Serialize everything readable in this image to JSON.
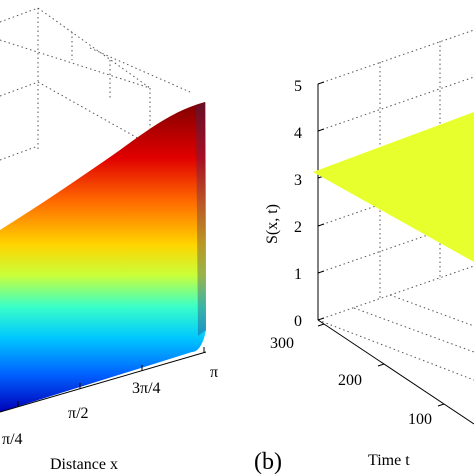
{
  "chart_data": [
    {
      "type": "surface",
      "panel": "left",
      "xlabel": "Distance x",
      "x_ticks": [
        "π/4",
        "π/2",
        "3π/4",
        "π"
      ],
      "colormap": "jet",
      "note_values": "surface rises along x toward π; partial view, z-axis cropped"
    },
    {
      "type": "surface",
      "panel_label": "(b)",
      "ylabel": "S(x, t)",
      "tlabel": "Time t",
      "z_ticks": [
        "0",
        "1",
        "2",
        "3",
        "4",
        "5"
      ],
      "zlim": [
        0,
        5
      ],
      "t_ticks": [
        "300",
        "200",
        "100"
      ],
      "surface_value": 3.2,
      "surface_color": "#e8ff2e"
    }
  ],
  "colors": {
    "jet_top": "#7f0000",
    "jet_high": "#ff4000",
    "jet_mid": "#ffff00",
    "jet_low": "#00e0ff",
    "jet_bottom": "#0000c0",
    "flat_surface": "#e8ff2e"
  }
}
